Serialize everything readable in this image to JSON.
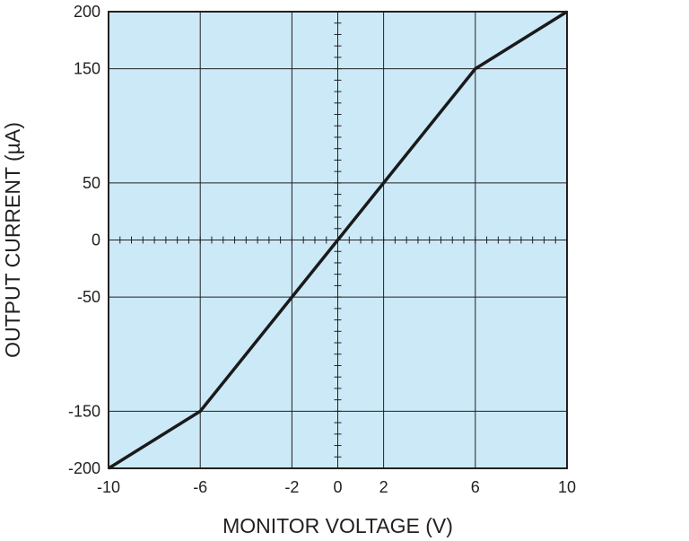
{
  "chart_data": {
    "type": "line",
    "xlabel": "MONITOR VOLTAGE (V)",
    "ylabel": "OUTPUT CURRENT (µA)",
    "xlim": [
      -10,
      10
    ],
    "ylim": [
      -200,
      200
    ],
    "x_ticks": [
      -10,
      -6,
      -2,
      0,
      2,
      6,
      10
    ],
    "x_tick_labels": [
      "-10",
      "-6",
      "-2",
      "0",
      "2",
      "6",
      "10"
    ],
    "y_ticks": [
      -200,
      -150,
      -50,
      0,
      50,
      150,
      200
    ],
    "y_tick_labels": [
      "-200",
      "-150",
      "-50",
      "0",
      "50",
      "150",
      "200"
    ],
    "grid": true,
    "plot_background": "#cce9f8",
    "line_color": "#1a1a1a",
    "series": [
      {
        "x": [
          -10,
          -6,
          -2,
          0,
          2,
          6,
          10
        ],
        "y": [
          -200,
          -150,
          -50,
          0,
          50,
          150,
          200
        ]
      }
    ]
  }
}
